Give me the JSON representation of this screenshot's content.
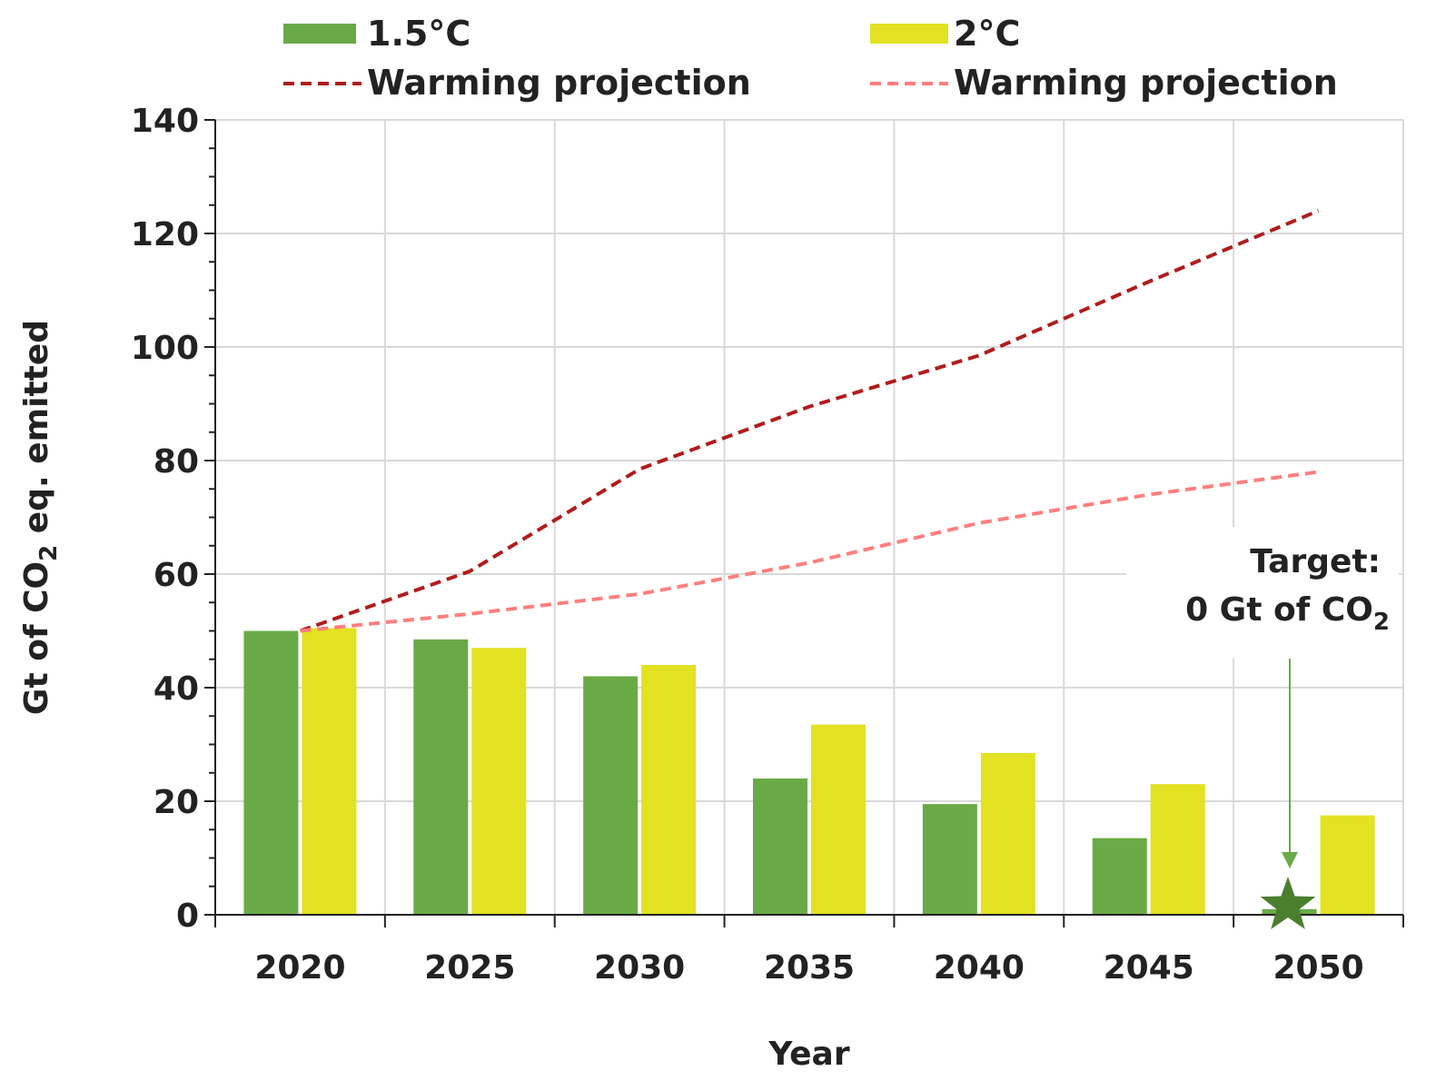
{
  "chart_data": {
    "type": "bar",
    "categories": [
      "2020",
      "2025",
      "2030",
      "2035",
      "2040",
      "2045",
      "2050"
    ],
    "series": [
      {
        "name": "1.5°C",
        "kind": "bar",
        "color": "#6aaa46",
        "values": [
          50,
          48.5,
          42,
          24,
          19.5,
          13.5,
          1
        ]
      },
      {
        "name": "2°C",
        "kind": "bar",
        "color": "#e2e122",
        "values": [
          50.5,
          47,
          44,
          33.5,
          28.5,
          23,
          17.5
        ]
      }
    ],
    "lines": [
      {
        "name": "Warming projection",
        "color": "#b01c1c",
        "dash": "dashed",
        "x": [
          2020,
          2025,
          2030,
          2035,
          2040,
          2045,
          2050
        ],
        "y": [
          50,
          60.5,
          78.5,
          89.5,
          98.5,
          111.5,
          124
        ]
      },
      {
        "name": "Warming projection",
        "color": "#ff7f7f",
        "dash": "dashed",
        "x": [
          2020,
          2025,
          2030,
          2035,
          2040,
          2045,
          2050
        ],
        "y": [
          50,
          53,
          56.5,
          62,
          69,
          74,
          78
        ]
      }
    ],
    "title": "",
    "xlabel": "Year",
    "ylabel_parts": {
      "before": "Gt of CO",
      "sub": "2",
      "after": " eq. emitted"
    },
    "ylim": [
      0,
      140
    ],
    "yticks": [
      0,
      20,
      40,
      60,
      80,
      100,
      120,
      140
    ],
    "grid": true,
    "legend_position": "top",
    "annotation": {
      "line1": "Target:",
      "line2_before": "0 Gt of CO",
      "line2_sub": "2",
      "target_value": 0,
      "marker": "star",
      "marker_color": "#4a7f2e",
      "arrow_color": "#6aaa46"
    }
  }
}
